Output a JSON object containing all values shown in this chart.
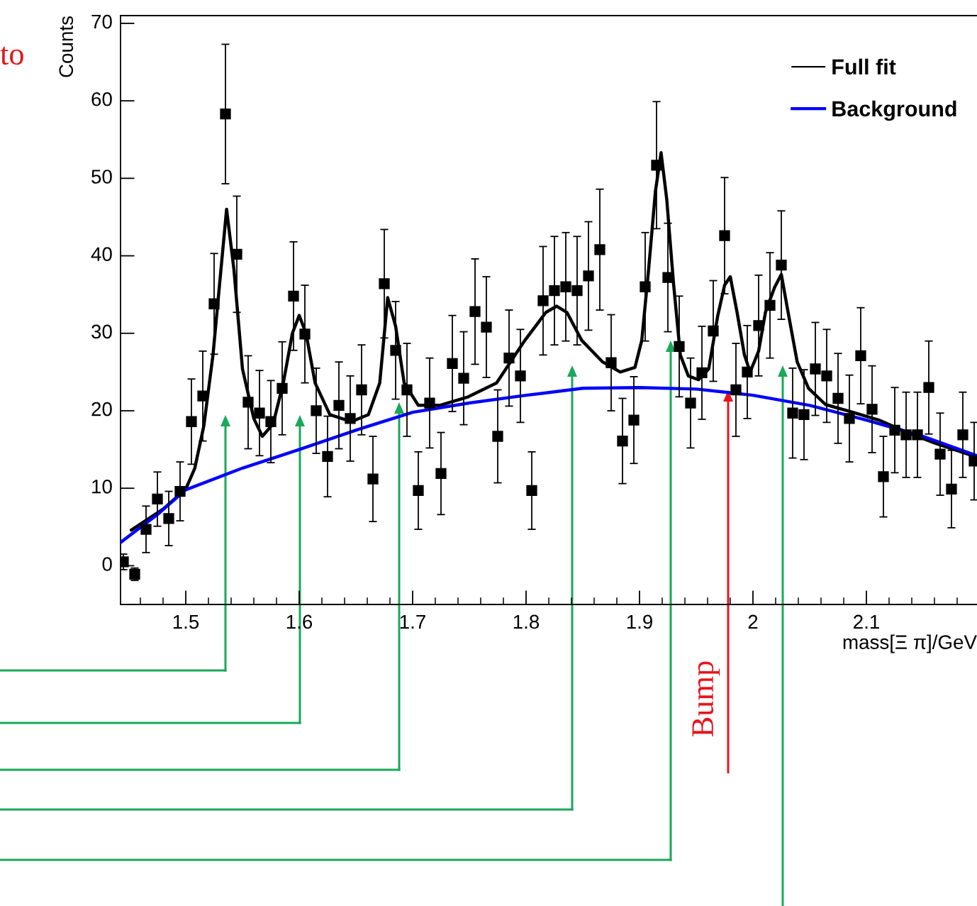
{
  "chart_data": {
    "type": "scatter",
    "xlabel": "mass[Ξ π]/GeV",
    "ylabel": "Counts",
    "xlim": [
      1.4425,
      2.1975
    ],
    "ylim": [
      -5,
      71
    ],
    "xticks": [
      1.5,
      1.6,
      1.7,
      1.8,
      1.9,
      2,
      2.1
    ],
    "yticks": [
      0,
      10,
      20,
      30,
      40,
      50,
      60,
      70
    ],
    "grid": false,
    "legend": "top right",
    "annotations": [
      "to",
      "Bump"
    ],
    "series": [
      {
        "color": "#000000",
        "marker": "square",
        "x": [
          1.445,
          1.455,
          1.465,
          1.475,
          1.485,
          1.495,
          1.505,
          1.515,
          1.525,
          1.535,
          1.545,
          1.555,
          1.565,
          1.575,
          1.585,
          1.595,
          1.605,
          1.615,
          1.625,
          1.635,
          1.645,
          1.655,
          1.665,
          1.675,
          1.685,
          1.695,
          1.705,
          1.715,
          1.725,
          1.735,
          1.745,
          1.755,
          1.765,
          1.775,
          1.785,
          1.795,
          1.805,
          1.815,
          1.825,
          1.835,
          1.845,
          1.855,
          1.865,
          1.875,
          1.885,
          1.895,
          1.905,
          1.915,
          1.925,
          1.935,
          1.945,
          1.955,
          1.965,
          1.975,
          1.985,
          1.995,
          2.005,
          2.015,
          2.025,
          2.035,
          2.045,
          2.055,
          2.065,
          2.075,
          2.085,
          2.095,
          2.105,
          2.115,
          2.125,
          2.135,
          2.145,
          2.155,
          2.165,
          2.175,
          2.185,
          2.195
        ],
        "values": [
          0.5,
          -1.1,
          4.7,
          8.6,
          6.1,
          9.6,
          18.6,
          21.9,
          33.8,
          58.3,
          40.2,
          21.1,
          19.7,
          18.6,
          22.9,
          34.8,
          29.9,
          20.0,
          14.1,
          20.7,
          19.0,
          22.7,
          11.2,
          36.4,
          27.8,
          22.7,
          9.7,
          21.0,
          11.9,
          26.1,
          24.2,
          32.8,
          30.8,
          16.7,
          26.8,
          24.5,
          9.7,
          34.2,
          35.5,
          36.0,
          35.5,
          37.4,
          40.8,
          26.2,
          16.1,
          18.8,
          36.0,
          51.7,
          37.2,
          28.3,
          21.0,
          24.9,
          30.3,
          42.6,
          22.7,
          25.0,
          31.0,
          33.6,
          38.8,
          19.7,
          19.5,
          25.4,
          24.5,
          21.6,
          19.0,
          27.1,
          20.2,
          11.5,
          17.5,
          16.9,
          16.9,
          23.0,
          14.4,
          9.9,
          16.9,
          13.5
        ],
        "errors": [
          1,
          0.8,
          3,
          3.5,
          3.5,
          3.8,
          5.5,
          5.8,
          6.5,
          9,
          7.5,
          6,
          5.5,
          5.3,
          6,
          7,
          6.3,
          5.5,
          5.2,
          5.6,
          5.5,
          5.8,
          5.5,
          7,
          6.3,
          6,
          5,
          5.8,
          5.3,
          6.2,
          6,
          6.8,
          6.5,
          6,
          6.2,
          6,
          5,
          7,
          7,
          7,
          7,
          7,
          7.8,
          6.2,
          5.5,
          5.6,
          7,
          8.2,
          7,
          6.5,
          5.8,
          6,
          6.5,
          7.5,
          6,
          6,
          6.5,
          6.8,
          7,
          5.8,
          5.8,
          6,
          6,
          5.8,
          5.6,
          6.2,
          5.6,
          5.2,
          5.5,
          5.5,
          5.5,
          6,
          5.3,
          5,
          5.5,
          5
        ]
      },
      {
        "type": "line",
        "name": "Full fit",
        "color": "#000000",
        "x": [
          1.452,
          1.48,
          1.5,
          1.508,
          1.516,
          1.524,
          1.531,
          1.536,
          1.5425,
          1.55,
          1.56,
          1.5675,
          1.577,
          1.586,
          1.594,
          1.6,
          1.606,
          1.614,
          1.627,
          1.646,
          1.661,
          1.671,
          1.678,
          1.685,
          1.6925,
          1.705,
          1.724,
          1.749,
          1.774,
          1.799,
          1.8175,
          1.827,
          1.836,
          1.849,
          1.8675,
          1.883,
          1.896,
          1.902,
          1.908,
          1.914,
          1.919,
          1.924,
          1.93,
          1.936,
          1.943,
          1.952,
          1.961,
          1.969,
          1.975,
          1.98,
          1.986,
          1.9925,
          1.9975,
          2.005,
          2.011,
          2.019,
          2.025,
          2.031,
          2.039,
          2.049,
          2.064,
          2.086,
          2.111,
          2.136,
          2.161,
          2.1975
        ],
        "values": [
          4.6,
          7.3,
          9.9,
          12.6,
          18.1,
          27.2,
          38.2,
          46.0,
          38.2,
          25.4,
          19.0,
          16.7,
          18.3,
          23.6,
          30.0,
          32.3,
          30.0,
          23.6,
          19.5,
          18.6,
          19.5,
          23.6,
          34.6,
          30.9,
          23.6,
          20.7,
          20.7,
          21.8,
          23.6,
          29.1,
          32.7,
          33.5,
          32.7,
          29.1,
          26.3,
          25.0,
          25.6,
          29.1,
          38.2,
          48.3,
          53.3,
          47.3,
          36.4,
          27.2,
          24.5,
          24.0,
          25.4,
          32.3,
          36.2,
          37.3,
          32.7,
          27.2,
          25.0,
          27.7,
          32.7,
          35.9,
          37.6,
          32.7,
          26.3,
          22.9,
          20.8,
          19.9,
          18.8,
          17.2,
          15.8,
          14.0
        ]
      },
      {
        "type": "line",
        "name": "Background",
        "color": "#0000ff",
        "x": [
          1.4425,
          1.475,
          1.5,
          1.55,
          1.6,
          1.65,
          1.7,
          1.75,
          1.8,
          1.85,
          1.9,
          1.95,
          2.0,
          2.05,
          2.1,
          2.15,
          2.1975
        ],
        "values": [
          3.0,
          6.6,
          9.8,
          12.6,
          15.0,
          17.5,
          19.8,
          21.0,
          22.0,
          22.9,
          23.0,
          22.8,
          22.0,
          20.7,
          18.8,
          16.7,
          14.2
        ]
      }
    ]
  }
}
